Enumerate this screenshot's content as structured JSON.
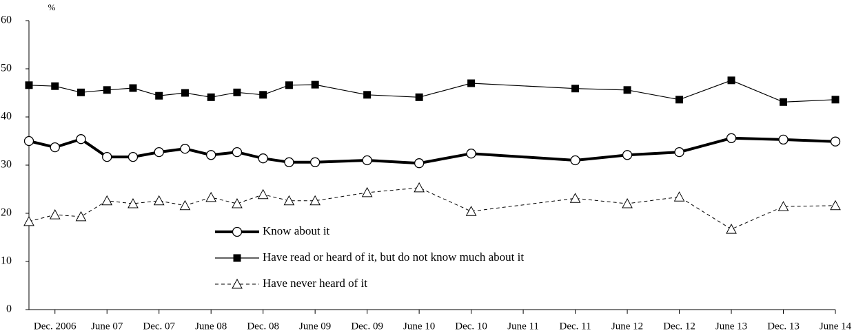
{
  "chart_data": {
    "type": "line",
    "y_label": "%",
    "x": [
      0,
      1,
      2,
      3,
      4,
      5,
      6,
      7,
      8,
      9,
      10,
      11,
      13,
      15,
      17,
      21,
      23,
      25,
      27,
      29,
      31
    ],
    "xlim": [
      0,
      31
    ],
    "xticks": [
      {
        "value": 1,
        "label": "Dec. 2006"
      },
      {
        "value": 3,
        "label": "June 07"
      },
      {
        "value": 5,
        "label": "Dec. 07"
      },
      {
        "value": 7,
        "label": "June 08"
      },
      {
        "value": 9,
        "label": "Dec. 08"
      },
      {
        "value": 11,
        "label": "June 09"
      },
      {
        "value": 13,
        "label": "Dec. 09"
      },
      {
        "value": 15,
        "label": "June 10"
      },
      {
        "value": 17,
        "label": "Dec. 10"
      },
      {
        "value": 19,
        "label": "June 11"
      },
      {
        "value": 21,
        "label": "Dec. 11"
      },
      {
        "value": 23,
        "label": "June 12"
      },
      {
        "value": 25,
        "label": "Dec. 12"
      },
      {
        "value": 27,
        "label": "June 13"
      },
      {
        "value": 29,
        "label": "Dec. 13"
      },
      {
        "value": 31,
        "label": "June 14"
      }
    ],
    "ylim": [
      0,
      60
    ],
    "yticks": [
      0,
      10,
      20,
      30,
      40,
      50,
      60
    ],
    "grid": false,
    "series": [
      {
        "name": "Know about it",
        "color": "#000000",
        "marker": "circle",
        "line_width": 4,
        "dashed": false,
        "values": [
          35,
          33.7,
          35.4,
          31.7,
          31.7,
          32.7,
          33.4,
          32.1,
          32.7,
          31.4,
          30.6,
          30.6,
          31.0,
          30.4,
          32.4,
          31.0,
          32.1,
          32.7,
          35.6,
          35.3,
          34.9
        ]
      },
      {
        "name": "Have read or heard of it, but do not know much about it",
        "color": "#000000",
        "marker": "square",
        "line_width": 1.2,
        "dashed": false,
        "values": [
          46.6,
          46.4,
          45.1,
          45.6,
          46.0,
          44.4,
          45.0,
          44.1,
          45.1,
          44.6,
          46.6,
          46.7,
          44.6,
          44.1,
          47.0,
          45.9,
          45.6,
          43.6,
          47.6,
          43.1,
          43.6
        ]
      },
      {
        "name": "Have never heard of it",
        "color": "#000000",
        "marker": "triangle",
        "line_width": 1,
        "dashed": true,
        "values": [
          18.3,
          19.7,
          19.3,
          22.6,
          22.0,
          22.6,
          21.6,
          23.3,
          22.0,
          23.9,
          22.6,
          22.6,
          24.3,
          25.3,
          20.4,
          23.1,
          22.0,
          23.4,
          16.7,
          21.4,
          21.6
        ]
      }
    ]
  }
}
